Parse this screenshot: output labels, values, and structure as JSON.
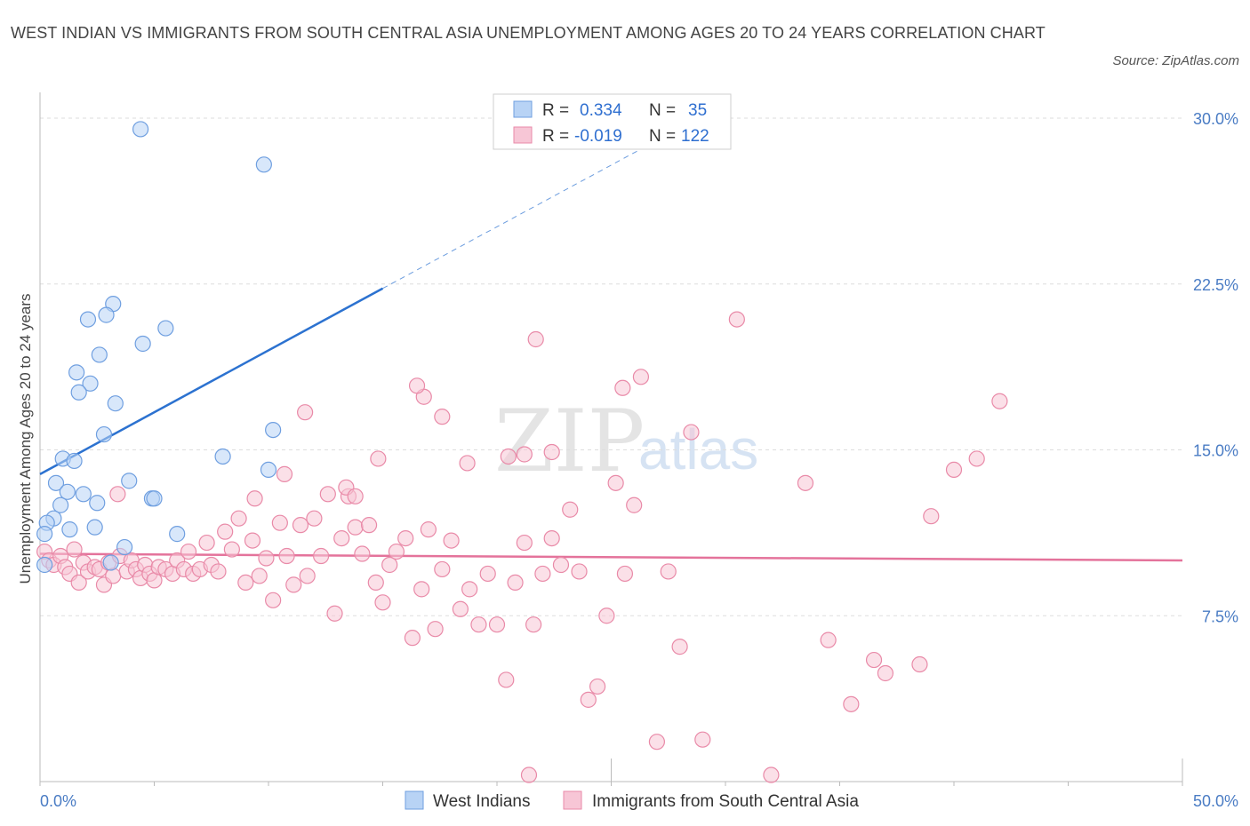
{
  "title": "WEST INDIAN VS IMMIGRANTS FROM SOUTH CENTRAL ASIA UNEMPLOYMENT AMONG AGES 20 TO 24 YEARS CORRELATION CHART",
  "source": "Source: ZipAtlas.com",
  "watermark": {
    "zip": "ZIP",
    "atlas": "atlas"
  },
  "colors": {
    "blue_fill": "#b8d3f5",
    "blue_stroke": "#6f9fe0",
    "blue_line": "#2c72d0",
    "pink_fill": "#f7c6d6",
    "pink_stroke": "#e98aa8",
    "pink_line": "#e4739b",
    "tick_text": "#4a7cc4",
    "grid": "#dddddd"
  },
  "legend": {
    "rows": [
      {
        "r_label": "R =",
        "r_value": "0.334",
        "n_label": "N =",
        "n_value": "35"
      },
      {
        "r_label": "R =",
        "r_value": "-0.019",
        "n_label": "N =",
        "n_value": "122"
      }
    ]
  },
  "chart_data": {
    "type": "scatter",
    "title": "WEST INDIAN VS IMMIGRANTS FROM SOUTH CENTRAL ASIA UNEMPLOYMENT AMONG AGES 20 TO 24 YEARS CORRELATION CHART",
    "xlabel": "",
    "ylabel": "Unemployment Among Ages 20 to 24 years",
    "xlim": [
      0,
      50
    ],
    "ylim": [
      0,
      30
    ],
    "x_tick_labels": [
      "0.0%",
      "50.0%"
    ],
    "y_ticks": [
      7.5,
      15.0,
      22.5,
      30.0
    ],
    "y_tick_labels": [
      "7.5%",
      "15.0%",
      "22.5%",
      "30.0%"
    ],
    "grid": true,
    "legend_position": "top-center",
    "series": [
      {
        "name": "West Indians",
        "color": "#b8d3f5",
        "trend": {
          "x": [
            0,
            15
          ],
          "y": [
            13.9,
            22.3
          ],
          "dashed_extension": {
            "x": [
              15,
              26.3
            ],
            "y": [
              22.3,
              28.6
            ]
          }
        },
        "points": [
          [
            4.4,
            29.5
          ],
          [
            9.8,
            27.9
          ],
          [
            3.2,
            21.6
          ],
          [
            2.9,
            21.1
          ],
          [
            2.1,
            20.9
          ],
          [
            5.5,
            20.5
          ],
          [
            4.5,
            19.8
          ],
          [
            2.6,
            19.3
          ],
          [
            1.6,
            18.5
          ],
          [
            2.2,
            18.0
          ],
          [
            1.7,
            17.6
          ],
          [
            3.3,
            17.1
          ],
          [
            2.8,
            15.7
          ],
          [
            10.2,
            15.9
          ],
          [
            1.0,
            14.6
          ],
          [
            1.5,
            14.5
          ],
          [
            8.0,
            14.7
          ],
          [
            10.0,
            14.1
          ],
          [
            3.9,
            13.6
          ],
          [
            0.7,
            13.5
          ],
          [
            1.2,
            13.1
          ],
          [
            1.9,
            13.0
          ],
          [
            4.9,
            12.8
          ],
          [
            5.0,
            12.8
          ],
          [
            2.5,
            12.6
          ],
          [
            0.9,
            12.5
          ],
          [
            0.6,
            11.9
          ],
          [
            0.3,
            11.7
          ],
          [
            1.3,
            11.4
          ],
          [
            2.4,
            11.5
          ],
          [
            6.0,
            11.2
          ],
          [
            0.2,
            11.2
          ],
          [
            3.7,
            10.6
          ],
          [
            3.1,
            9.9
          ],
          [
            0.2,
            9.8
          ]
        ]
      },
      {
        "name": "Immigrants from South Central Asia",
        "color": "#f7c6d6",
        "trend": {
          "x": [
            0,
            50
          ],
          "y": [
            10.3,
            10.0
          ]
        },
        "points": [
          [
            0.2,
            10.4
          ],
          [
            0.4,
            10.0
          ],
          [
            0.6,
            9.8
          ],
          [
            0.9,
            10.2
          ],
          [
            1.1,
            9.7
          ],
          [
            1.3,
            9.4
          ],
          [
            1.5,
            10.5
          ],
          [
            1.7,
            9.0
          ],
          [
            1.9,
            9.9
          ],
          [
            2.1,
            9.5
          ],
          [
            2.4,
            9.7
          ],
          [
            2.6,
            9.6
          ],
          [
            2.8,
            8.9
          ],
          [
            3.0,
            9.9
          ],
          [
            3.2,
            9.3
          ],
          [
            3.5,
            10.2
          ],
          [
            3.8,
            9.5
          ],
          [
            4.0,
            10.0
          ],
          [
            4.2,
            9.6
          ],
          [
            4.4,
            9.2
          ],
          [
            4.6,
            9.8
          ],
          [
            4.8,
            9.4
          ],
          [
            5.0,
            9.1
          ],
          [
            5.2,
            9.7
          ],
          [
            5.5,
            9.6
          ],
          [
            5.8,
            9.4
          ],
          [
            6.0,
            10.0
          ],
          [
            6.3,
            9.6
          ],
          [
            6.5,
            10.4
          ],
          [
            6.7,
            9.4
          ],
          [
            7.0,
            9.6
          ],
          [
            7.3,
            10.8
          ],
          [
            7.5,
            9.8
          ],
          [
            7.8,
            9.5
          ],
          [
            8.1,
            11.3
          ],
          [
            8.4,
            10.5
          ],
          [
            8.7,
            11.9
          ],
          [
            9.0,
            9.0
          ],
          [
            9.3,
            10.9
          ],
          [
            9.6,
            9.3
          ],
          [
            9.9,
            10.1
          ],
          [
            10.2,
            8.2
          ],
          [
            10.5,
            11.7
          ],
          [
            10.8,
            10.2
          ],
          [
            11.1,
            8.9
          ],
          [
            11.4,
            11.6
          ],
          [
            11.7,
            9.3
          ],
          [
            12.0,
            11.9
          ],
          [
            12.3,
            10.2
          ],
          [
            12.6,
            13.0
          ],
          [
            12.9,
            7.6
          ],
          [
            13.2,
            11.0
          ],
          [
            13.5,
            12.9
          ],
          [
            13.8,
            11.5
          ],
          [
            14.1,
            10.3
          ],
          [
            14.4,
            11.6
          ],
          [
            14.7,
            9.0
          ],
          [
            15.0,
            8.1
          ],
          [
            15.3,
            9.8
          ],
          [
            15.6,
            10.4
          ],
          [
            16.0,
            11.0
          ],
          [
            16.3,
            6.5
          ],
          [
            16.7,
            8.7
          ],
          [
            17.0,
            11.4
          ],
          [
            17.3,
            6.9
          ],
          [
            17.6,
            9.6
          ],
          [
            18.0,
            10.9
          ],
          [
            18.4,
            7.8
          ],
          [
            18.8,
            8.7
          ],
          [
            19.2,
            7.1
          ],
          [
            19.6,
            9.4
          ],
          [
            20.0,
            7.1
          ],
          [
            20.4,
            4.6
          ],
          [
            20.8,
            9.0
          ],
          [
            21.2,
            10.8
          ],
          [
            21.6,
            7.1
          ],
          [
            22.0,
            9.4
          ],
          [
            22.4,
            11.0
          ],
          [
            22.8,
            9.8
          ],
          [
            23.2,
            12.3
          ],
          [
            23.6,
            9.5
          ],
          [
            24.0,
            3.7
          ],
          [
            24.4,
            4.3
          ],
          [
            24.8,
            7.5
          ],
          [
            25.2,
            13.5
          ],
          [
            25.6,
            9.4
          ],
          [
            26.0,
            12.5
          ],
          [
            26.3,
            18.3
          ],
          [
            27.0,
            1.8
          ],
          [
            27.5,
            9.5
          ],
          [
            28.0,
            6.1
          ],
          [
            28.5,
            15.8
          ],
          [
            29.0,
            1.9
          ],
          [
            30.5,
            20.9
          ],
          [
            32.0,
            0.3
          ],
          [
            33.5,
            13.5
          ],
          [
            34.5,
            6.4
          ],
          [
            35.5,
            3.5
          ],
          [
            36.5,
            5.5
          ],
          [
            37.0,
            4.9
          ],
          [
            38.5,
            5.3
          ],
          [
            39.0,
            12.0
          ],
          [
            40.0,
            14.1
          ],
          [
            41.0,
            14.6
          ],
          [
            42.0,
            17.2
          ],
          [
            21.4,
            0.3
          ],
          [
            18.7,
            14.4
          ],
          [
            17.6,
            16.5
          ],
          [
            16.8,
            17.4
          ],
          [
            16.5,
            17.9
          ],
          [
            21.7,
            20.0
          ],
          [
            25.5,
            17.8
          ],
          [
            14.8,
            14.6
          ],
          [
            11.6,
            16.7
          ],
          [
            10.7,
            13.9
          ],
          [
            13.4,
            13.3
          ],
          [
            13.8,
            12.9
          ],
          [
            9.4,
            12.8
          ],
          [
            3.4,
            13.0
          ],
          [
            20.5,
            14.7
          ],
          [
            21.2,
            14.8
          ],
          [
            22.4,
            14.9
          ]
        ]
      }
    ]
  }
}
